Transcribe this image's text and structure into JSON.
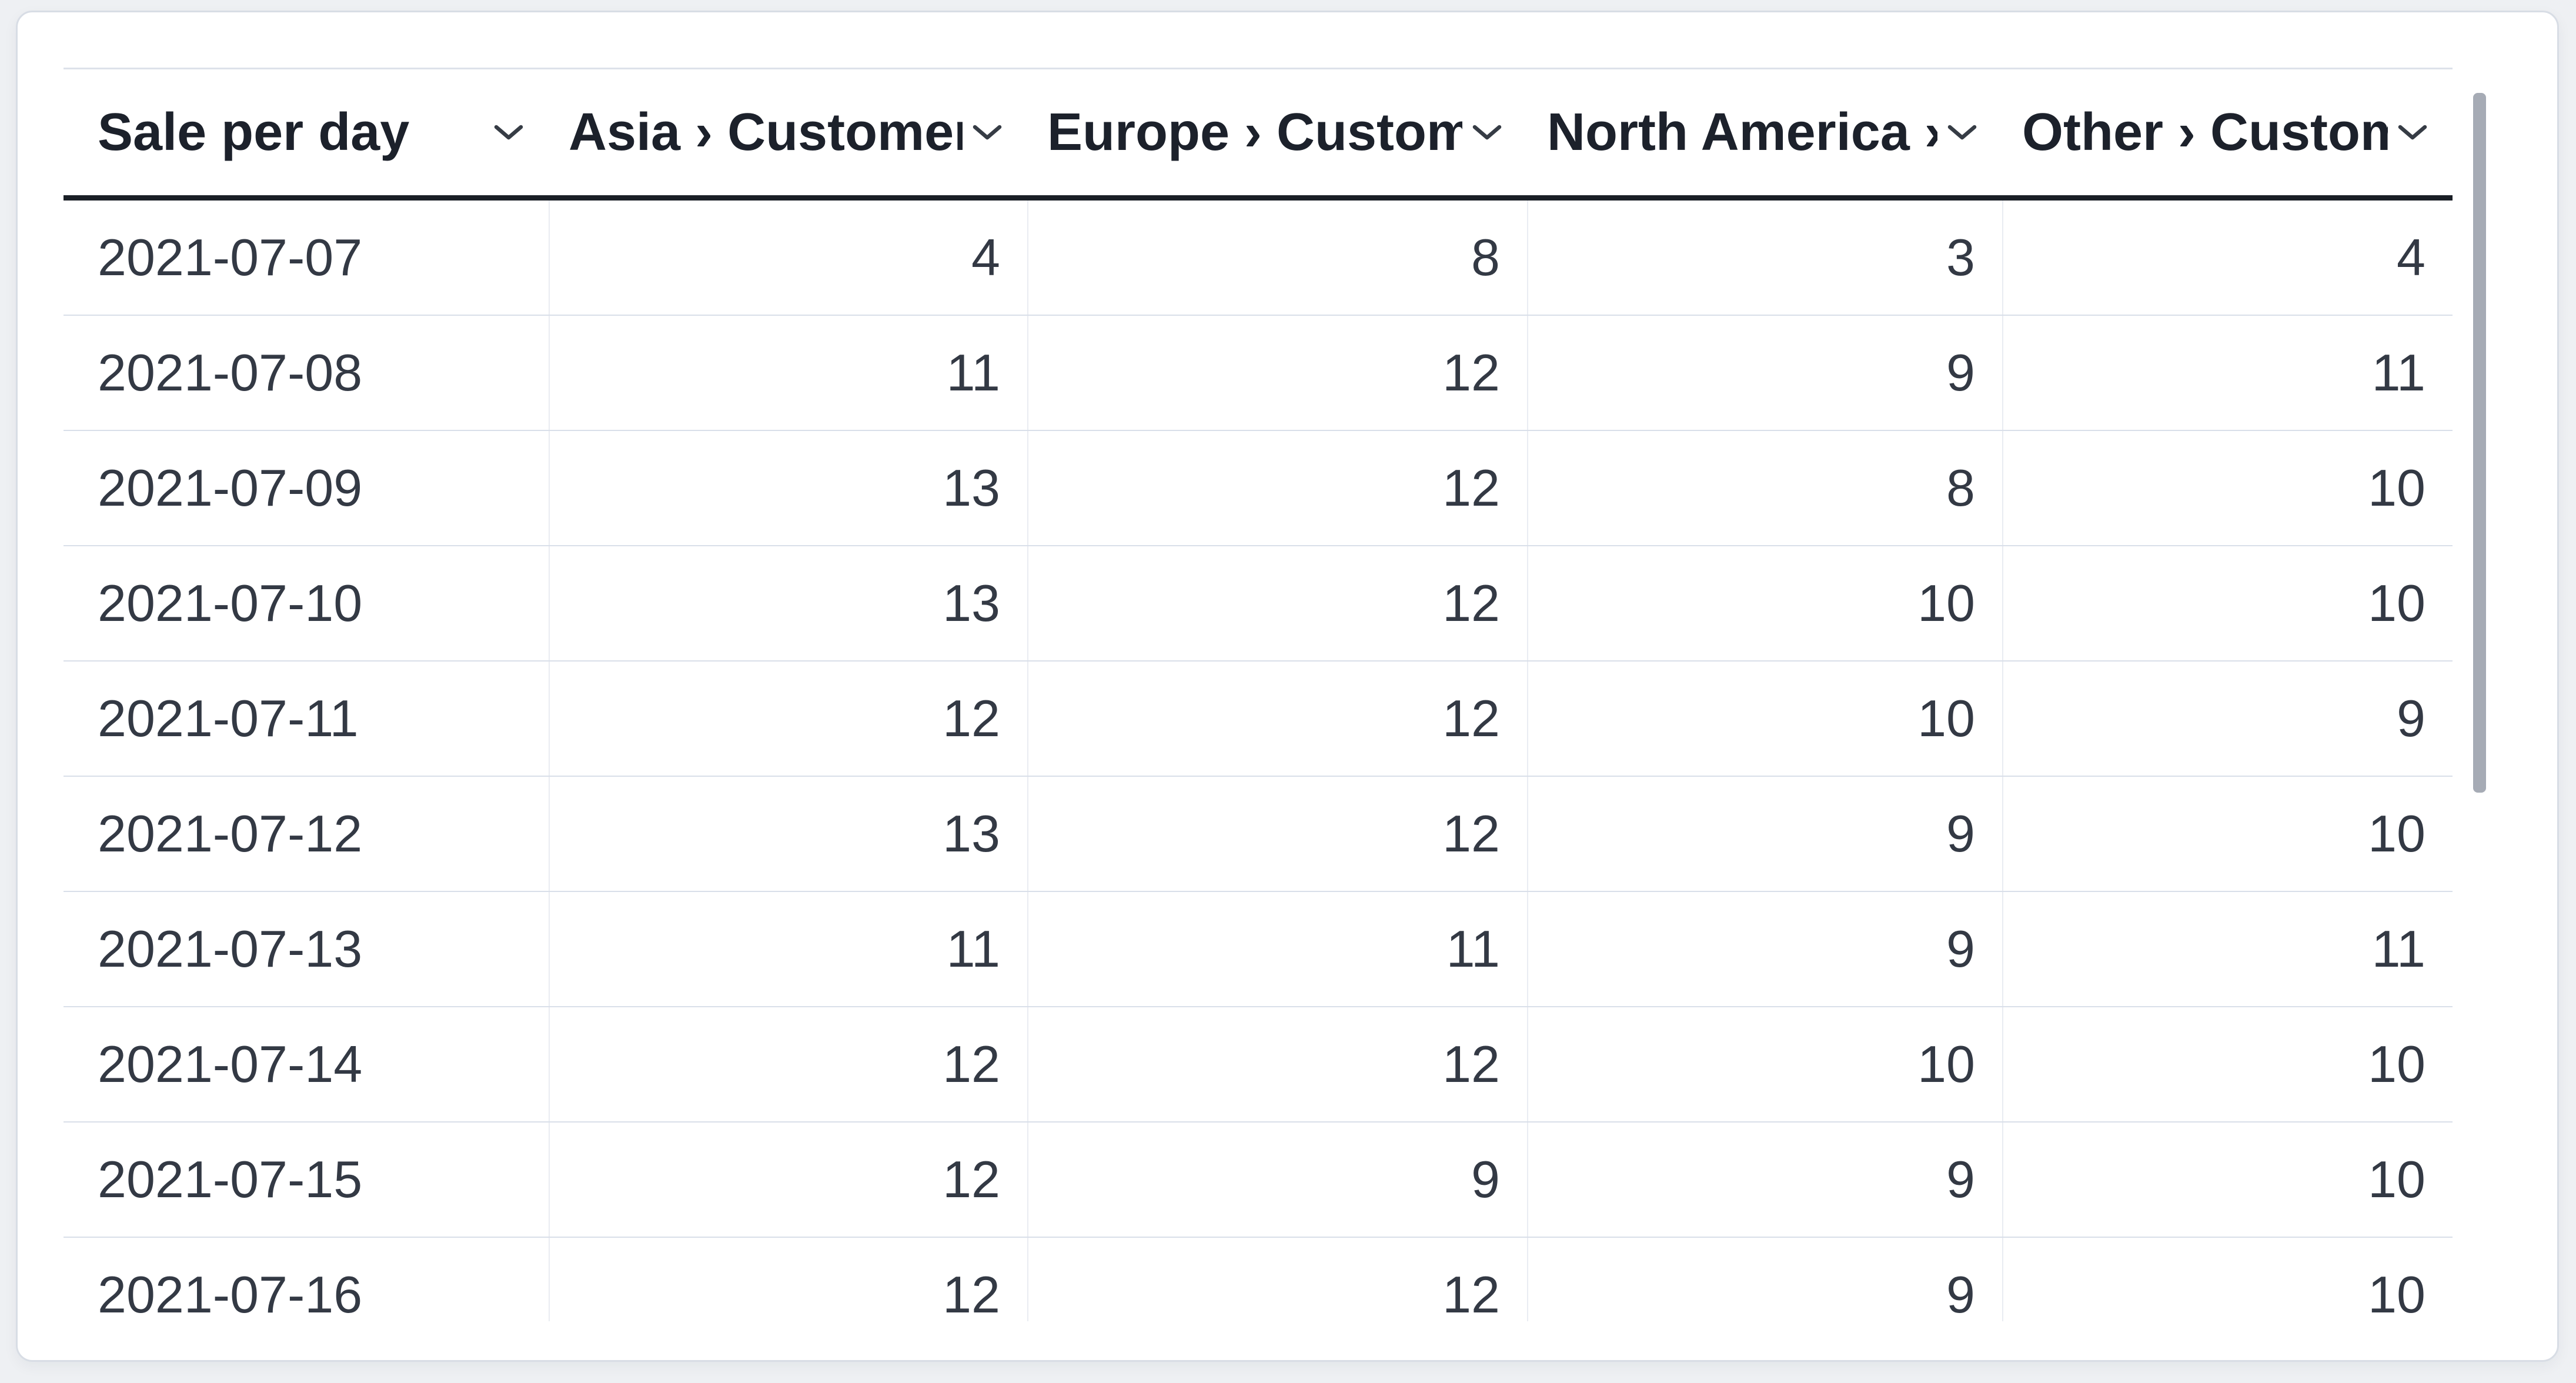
{
  "palette": {
    "page_background": "#eef0f3",
    "card_background": "#ffffff",
    "card_border": "#d8dde5",
    "header_text": "#1c212b",
    "body_text": "#333944",
    "header_underline": "#1a1f26",
    "row_separator": "#d9dfe9",
    "column_separator": "#e9ecf2",
    "scrollbar_thumb": "#a6abb5"
  },
  "table": {
    "columns": [
      {
        "id": "sale_per_day",
        "label": "Sale per day",
        "align": "left",
        "sort_icon": "chevron-down"
      },
      {
        "id": "asia_customers",
        "label": "Asia › Customers",
        "align": "right",
        "sort_icon": "chevron-down"
      },
      {
        "id": "europe_customers",
        "label": "Europe › Customers",
        "align": "right",
        "sort_icon": "chevron-down"
      },
      {
        "id": "north_america_customers",
        "label": "North America › Customers",
        "align": "right",
        "sort_icon": "chevron-down"
      },
      {
        "id": "other_customers",
        "label": "Other › Customers",
        "align": "right",
        "sort_icon": "chevron-down"
      }
    ],
    "rows": [
      [
        "2021-07-07",
        4,
        8,
        3,
        4
      ],
      [
        "2021-07-08",
        11,
        12,
        9,
        11
      ],
      [
        "2021-07-09",
        13,
        12,
        8,
        10
      ],
      [
        "2021-07-10",
        13,
        12,
        10,
        10
      ],
      [
        "2021-07-11",
        12,
        12,
        10,
        9
      ],
      [
        "2021-07-12",
        13,
        12,
        9,
        10
      ],
      [
        "2021-07-13",
        11,
        11,
        9,
        11
      ],
      [
        "2021-07-14",
        12,
        12,
        10,
        10
      ],
      [
        "2021-07-15",
        12,
        9,
        9,
        10
      ],
      [
        "2021-07-16",
        12,
        12,
        9,
        10
      ]
    ]
  },
  "chart_data": {
    "type": "table",
    "title": "Sale per day",
    "columns": [
      "Sale per day",
      "Asia › Customers",
      "Europe › Customers",
      "North America › Customers",
      "Other › Customers"
    ],
    "rows": [
      [
        "2021-07-07",
        4,
        8,
        3,
        4
      ],
      [
        "2021-07-08",
        11,
        12,
        9,
        11
      ],
      [
        "2021-07-09",
        13,
        12,
        8,
        10
      ],
      [
        "2021-07-10",
        13,
        12,
        10,
        10
      ],
      [
        "2021-07-11",
        12,
        12,
        10,
        9
      ],
      [
        "2021-07-12",
        13,
        12,
        9,
        10
      ],
      [
        "2021-07-13",
        11,
        11,
        9,
        11
      ],
      [
        "2021-07-14",
        12,
        12,
        10,
        10
      ],
      [
        "2021-07-15",
        12,
        9,
        9,
        10
      ],
      [
        "2021-07-16",
        12,
        12,
        9,
        10
      ]
    ]
  }
}
